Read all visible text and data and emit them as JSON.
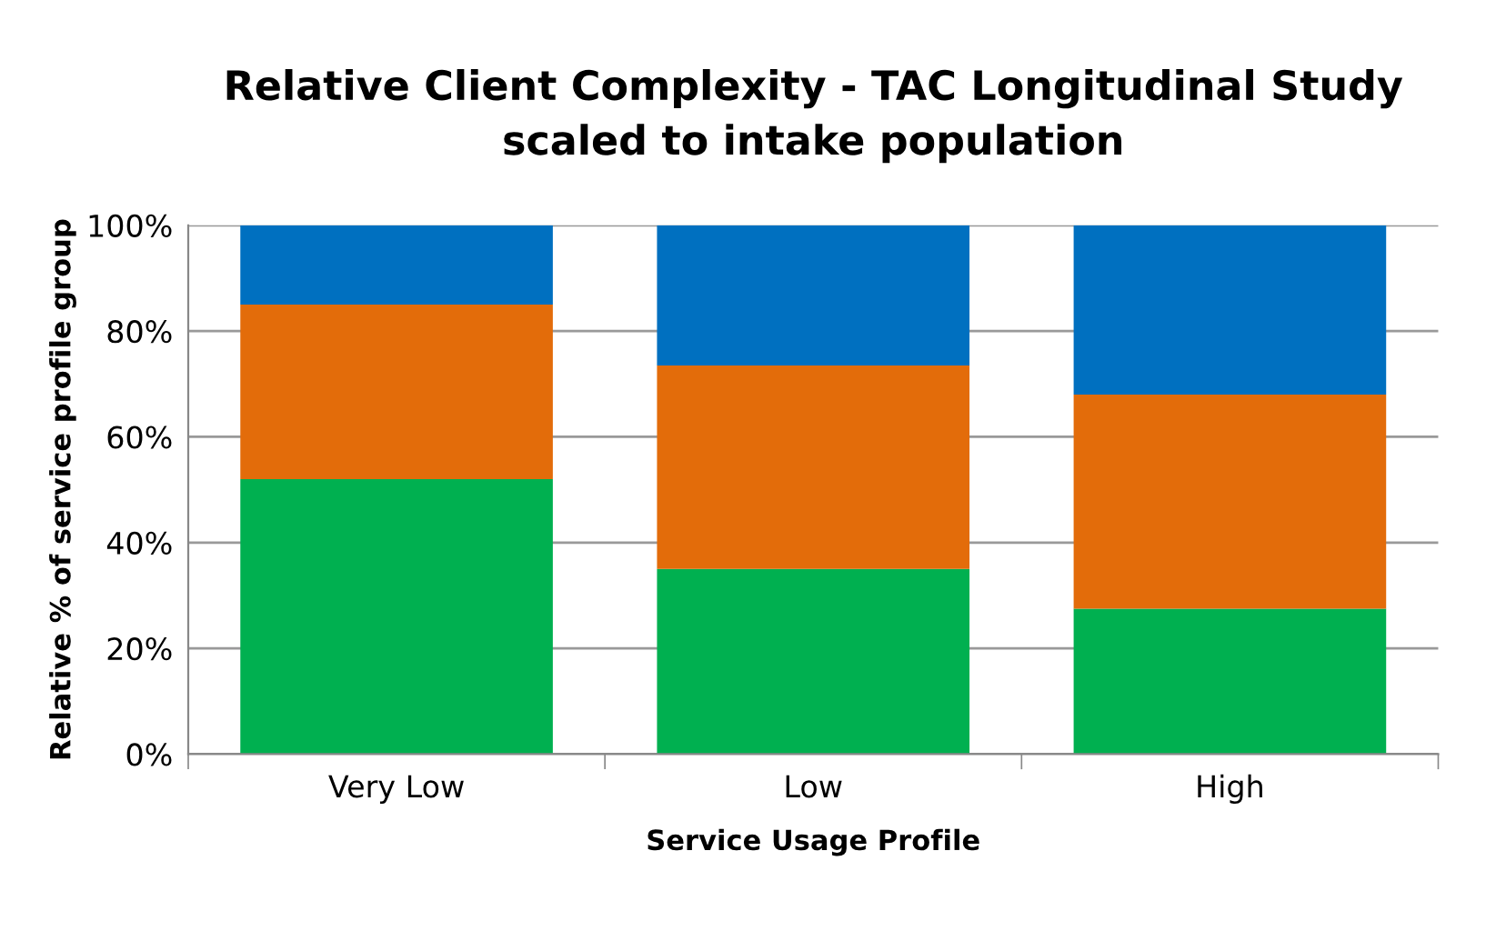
{
  "chart_data": {
    "type": "bar",
    "title": "Relative Client Complexity - TAC Longitudinal Study\nscaled to intake population",
    "xlabel": "Service Usage Profile",
    "ylabel": "Relative % of service profile group",
    "categories": [
      "Very Low",
      "Low",
      "High"
    ],
    "stacked": true,
    "series": [
      {
        "color": "#00b050",
        "values": [
          52,
          35,
          27.5
        ]
      },
      {
        "color": "#e36c0a",
        "values": [
          33,
          38.5,
          40.5
        ]
      },
      {
        "color": "#0070c0",
        "values": [
          15,
          26.5,
          32
        ]
      }
    ],
    "ylim": [
      0,
      100
    ],
    "yticks": [
      {
        "value": 0,
        "label": "0%"
      },
      {
        "value": 20,
        "label": "20%"
      },
      {
        "value": 40,
        "label": "40%"
      },
      {
        "value": 60,
        "label": "60%"
      },
      {
        "value": 80,
        "label": "80%"
      },
      {
        "value": 100,
        "label": "100%"
      }
    ],
    "grid": "y",
    "legend": false
  }
}
